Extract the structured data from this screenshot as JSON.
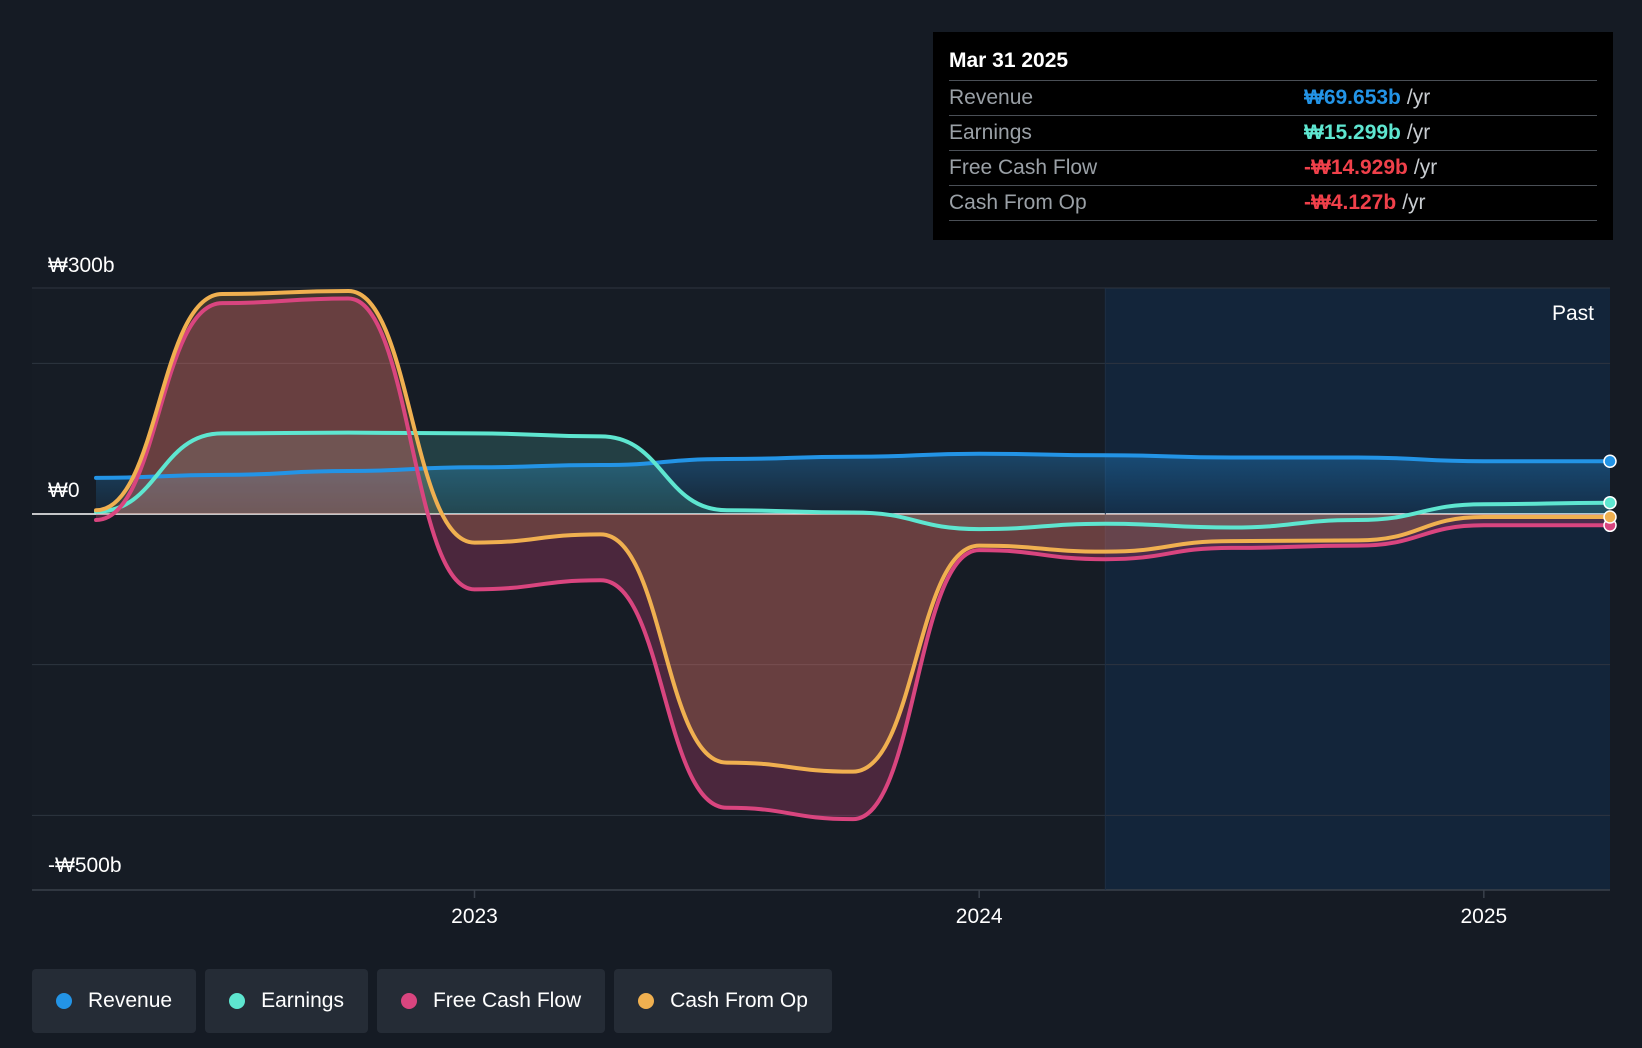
{
  "colors": {
    "revenue": "#2394e6",
    "earnings": "#5ee6d0",
    "free_cash_flow": "#d9457f",
    "cash_from_op": "#f0b050",
    "negative_text": "#f0404a"
  },
  "tooltip": {
    "date": "Mar 31 2025",
    "rows": [
      {
        "name": "Revenue",
        "value": "₩69.653b",
        "unit": "/yr"
      },
      {
        "name": "Earnings",
        "value": "₩15.299b",
        "unit": "/yr"
      },
      {
        "name": "Free Cash Flow",
        "value": "-₩14.929b",
        "unit": "/yr"
      },
      {
        "name": "Cash From Op",
        "value": "-₩4.127b",
        "unit": "/yr"
      }
    ]
  },
  "legend": [
    {
      "label": "Revenue",
      "color": "#2394e6"
    },
    {
      "label": "Earnings",
      "color": "#5ee6d0"
    },
    {
      "label": "Free Cash Flow",
      "color": "#d9457f"
    },
    {
      "label": "Cash From Op",
      "color": "#f0b050"
    }
  ],
  "chart_data": {
    "type": "area",
    "y_axis_labels": [
      "₩300b",
      "₩0",
      "-₩500b"
    ],
    "x_tick_labels": [
      "2023",
      "2024",
      "2025"
    ],
    "region_label": "Past",
    "ylim": [
      -500,
      300
    ],
    "xlim": [
      2022.25,
      2025.25
    ],
    "past_region_start": 2024.25,
    "gridlines": [
      300,
      200,
      0,
      -200,
      -400
    ],
    "legend_position": "bottom",
    "series": [
      {
        "name": "Revenue",
        "color": "#2394e6",
        "x": [
          2022.25,
          2022.5,
          2022.75,
          2023.0,
          2023.25,
          2023.5,
          2023.75,
          2024.0,
          2024.25,
          2024.5,
          2024.75,
          2025.0,
          2025.25
        ],
        "y": [
          48,
          52,
          57,
          62,
          65,
          73,
          76,
          80,
          78,
          75,
          75,
          70,
          70
        ]
      },
      {
        "name": "Earnings",
        "color": "#5ee6d0",
        "x": [
          2022.25,
          2022.5,
          2022.75,
          2023.0,
          2023.25,
          2023.5,
          2023.75,
          2024.0,
          2024.25,
          2024.5,
          2024.75,
          2025.0,
          2025.25
        ],
        "y": [
          3,
          107,
          108,
          107,
          103,
          5,
          2,
          -20,
          -13,
          -18,
          -8,
          13,
          15
        ]
      },
      {
        "name": "Free Cash Flow",
        "color": "#d9457f",
        "x": [
          2022.25,
          2022.5,
          2022.75,
          2023.0,
          2023.25,
          2023.5,
          2023.75,
          2024.0,
          2024.25,
          2024.5,
          2024.75,
          2025.0,
          2025.25
        ],
        "y": [
          -8,
          280,
          286,
          -100,
          -88,
          -390,
          -405,
          -48,
          -60,
          -45,
          -42,
          -15,
          -15
        ]
      },
      {
        "name": "Cash From Op",
        "color": "#f0b050",
        "x": [
          2022.25,
          2022.5,
          2022.75,
          2023.0,
          2023.25,
          2023.5,
          2023.75,
          2024.0,
          2024.25,
          2024.5,
          2024.75,
          2025.0,
          2025.25
        ],
        "y": [
          5,
          292,
          296,
          -38,
          -27,
          -330,
          -342,
          -42,
          -50,
          -36,
          -35,
          -4,
          -4
        ]
      }
    ]
  }
}
